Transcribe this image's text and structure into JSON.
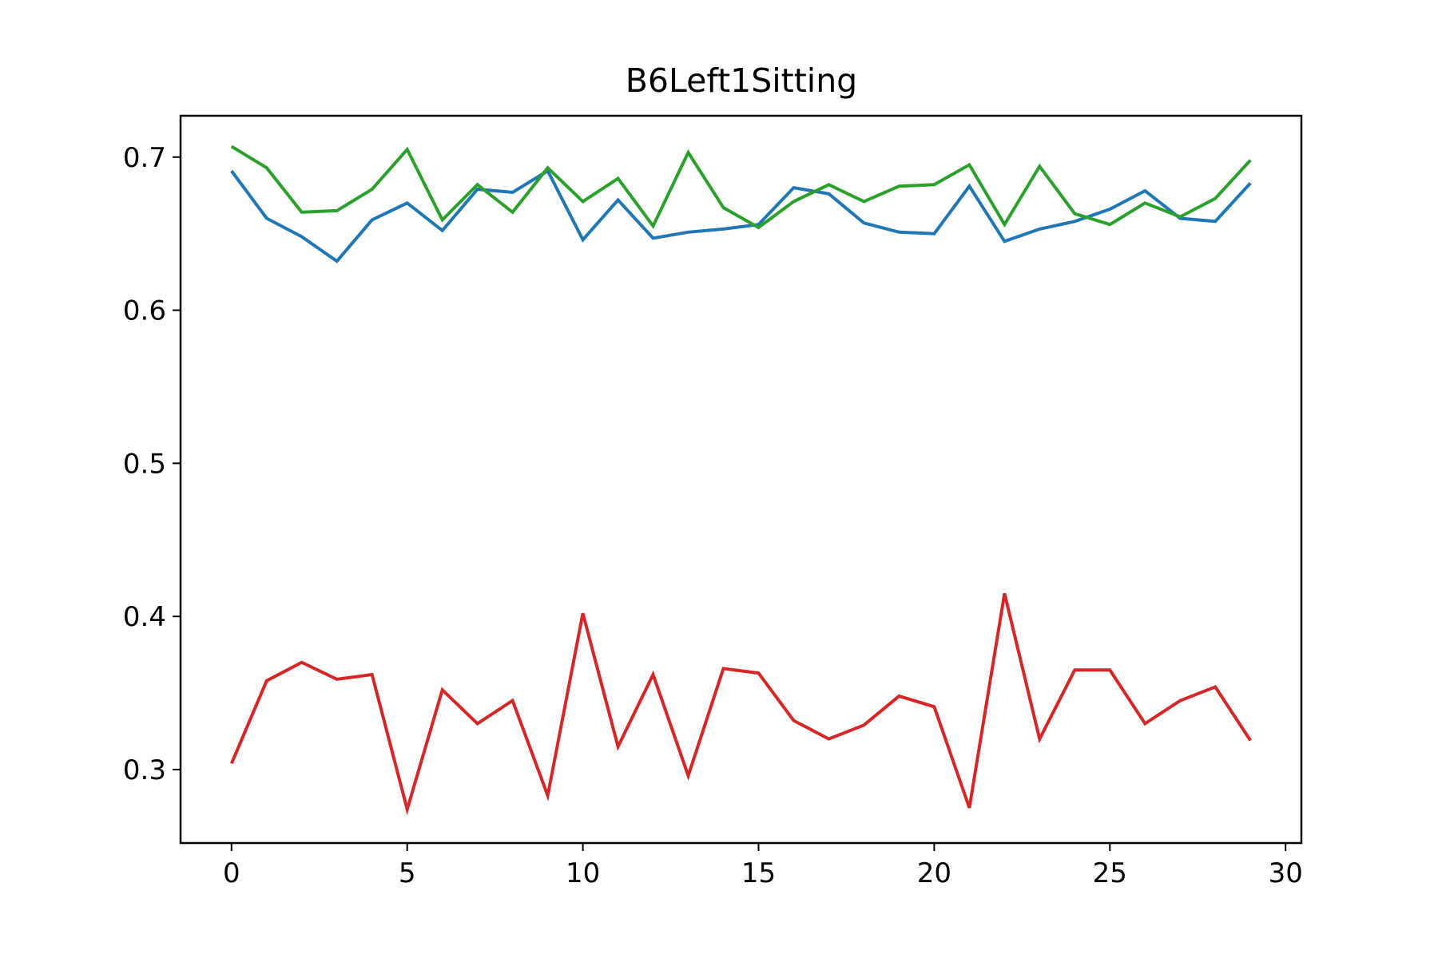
{
  "chart_data": {
    "type": "line",
    "title": "B6Left1Sitting",
    "xlabel": "",
    "ylabel": "",
    "xlim": [
      -1.45,
      30.45
    ],
    "ylim": [
      0.252,
      0.727
    ],
    "x_ticks": [
      0,
      5,
      10,
      15,
      20,
      25,
      30
    ],
    "y_ticks": [
      0.3,
      0.4,
      0.5,
      0.6,
      0.7
    ],
    "x_tick_labels": [
      "0",
      "5",
      "10",
      "15",
      "20",
      "25",
      "30"
    ],
    "y_tick_labels": [
      "0.3",
      "0.4",
      "0.5",
      "0.6",
      "0.7"
    ],
    "grid": false,
    "legend": "none",
    "x": [
      0,
      1,
      2,
      3,
      4,
      5,
      6,
      7,
      8,
      9,
      10,
      11,
      12,
      13,
      14,
      15,
      16,
      17,
      18,
      19,
      20,
      21,
      22,
      23,
      24,
      25,
      26,
      27,
      28,
      29
    ],
    "series": [
      {
        "color": "#1f77b4",
        "values": [
          0.691,
          0.66,
          0.648,
          0.632,
          0.659,
          0.67,
          0.652,
          0.679,
          0.677,
          0.691,
          0.646,
          0.672,
          0.647,
          0.651,
          0.653,
          0.656,
          0.68,
          0.676,
          0.657,
          0.651,
          0.65,
          0.681,
          0.645,
          0.653,
          0.658,
          0.666,
          0.678,
          0.66,
          0.658,
          0.683
        ]
      },
      {
        "color": "#2ca02c",
        "values": [
          0.707,
          0.693,
          0.664,
          0.665,
          0.679,
          0.705,
          0.659,
          0.682,
          0.664,
          0.693,
          0.671,
          0.686,
          0.655,
          0.703,
          0.667,
          0.654,
          0.671,
          0.682,
          0.671,
          0.681,
          0.682,
          0.695,
          0.656,
          0.694,
          0.663,
          0.656,
          0.67,
          0.661,
          0.673,
          0.698
        ]
      },
      {
        "color": "#d62728",
        "values": [
          0.304,
          0.358,
          0.37,
          0.359,
          0.362,
          0.274,
          0.352,
          0.33,
          0.345,
          0.283,
          0.402,
          0.315,
          0.362,
          0.296,
          0.366,
          0.363,
          0.332,
          0.32,
          0.329,
          0.348,
          0.341,
          0.275,
          0.415,
          0.32,
          0.365,
          0.365,
          0.33,
          0.345,
          0.354,
          0.319
        ]
      }
    ]
  }
}
